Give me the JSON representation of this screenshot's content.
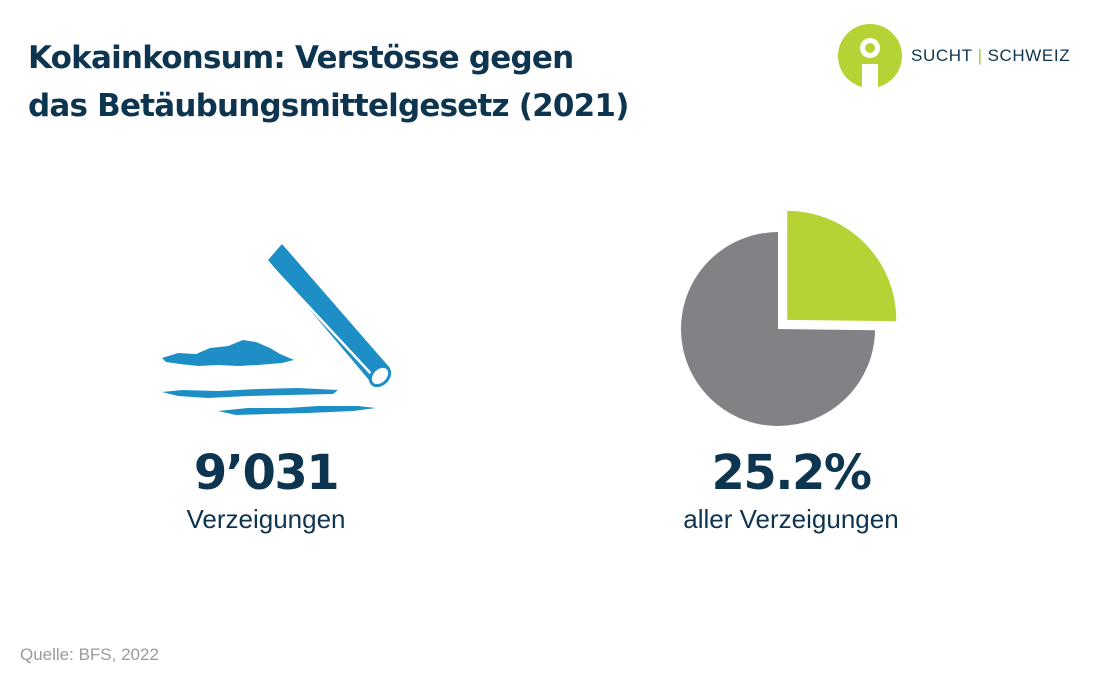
{
  "title": {
    "line1": "Kokainkonsum: Verstösse gegen",
    "line2": "das Betäubungsmittelgesetz (2021)"
  },
  "logo": {
    "part1": "SUCHT",
    "separator": "|",
    "part2": "SCHWEIZ",
    "icon": "person-circle-icon"
  },
  "colors": {
    "text": "#0e3550",
    "accent_green": "#b5d334",
    "pie_gray": "#808285",
    "cocaine_blue": "#1d8fc6",
    "source_gray": "#9a9a9a"
  },
  "icons": {
    "cocaine": "cocaine-lines-and-straw-icon"
  },
  "chart_data": {
    "type": "pie",
    "slices": [
      {
        "label": "Kokainkonsum",
        "value": 25.2,
        "color": "#b5d334",
        "exploded": true
      },
      {
        "label": "",
        "value": 74.8,
        "color": "#808285",
        "exploded": false
      }
    ],
    "stats": [
      {
        "value": "9’031",
        "label": "Verzeigungen"
      },
      {
        "value": "25.2%",
        "label": "aller Verzeigungen"
      }
    ]
  },
  "source": "Quelle: BFS, 2022"
}
